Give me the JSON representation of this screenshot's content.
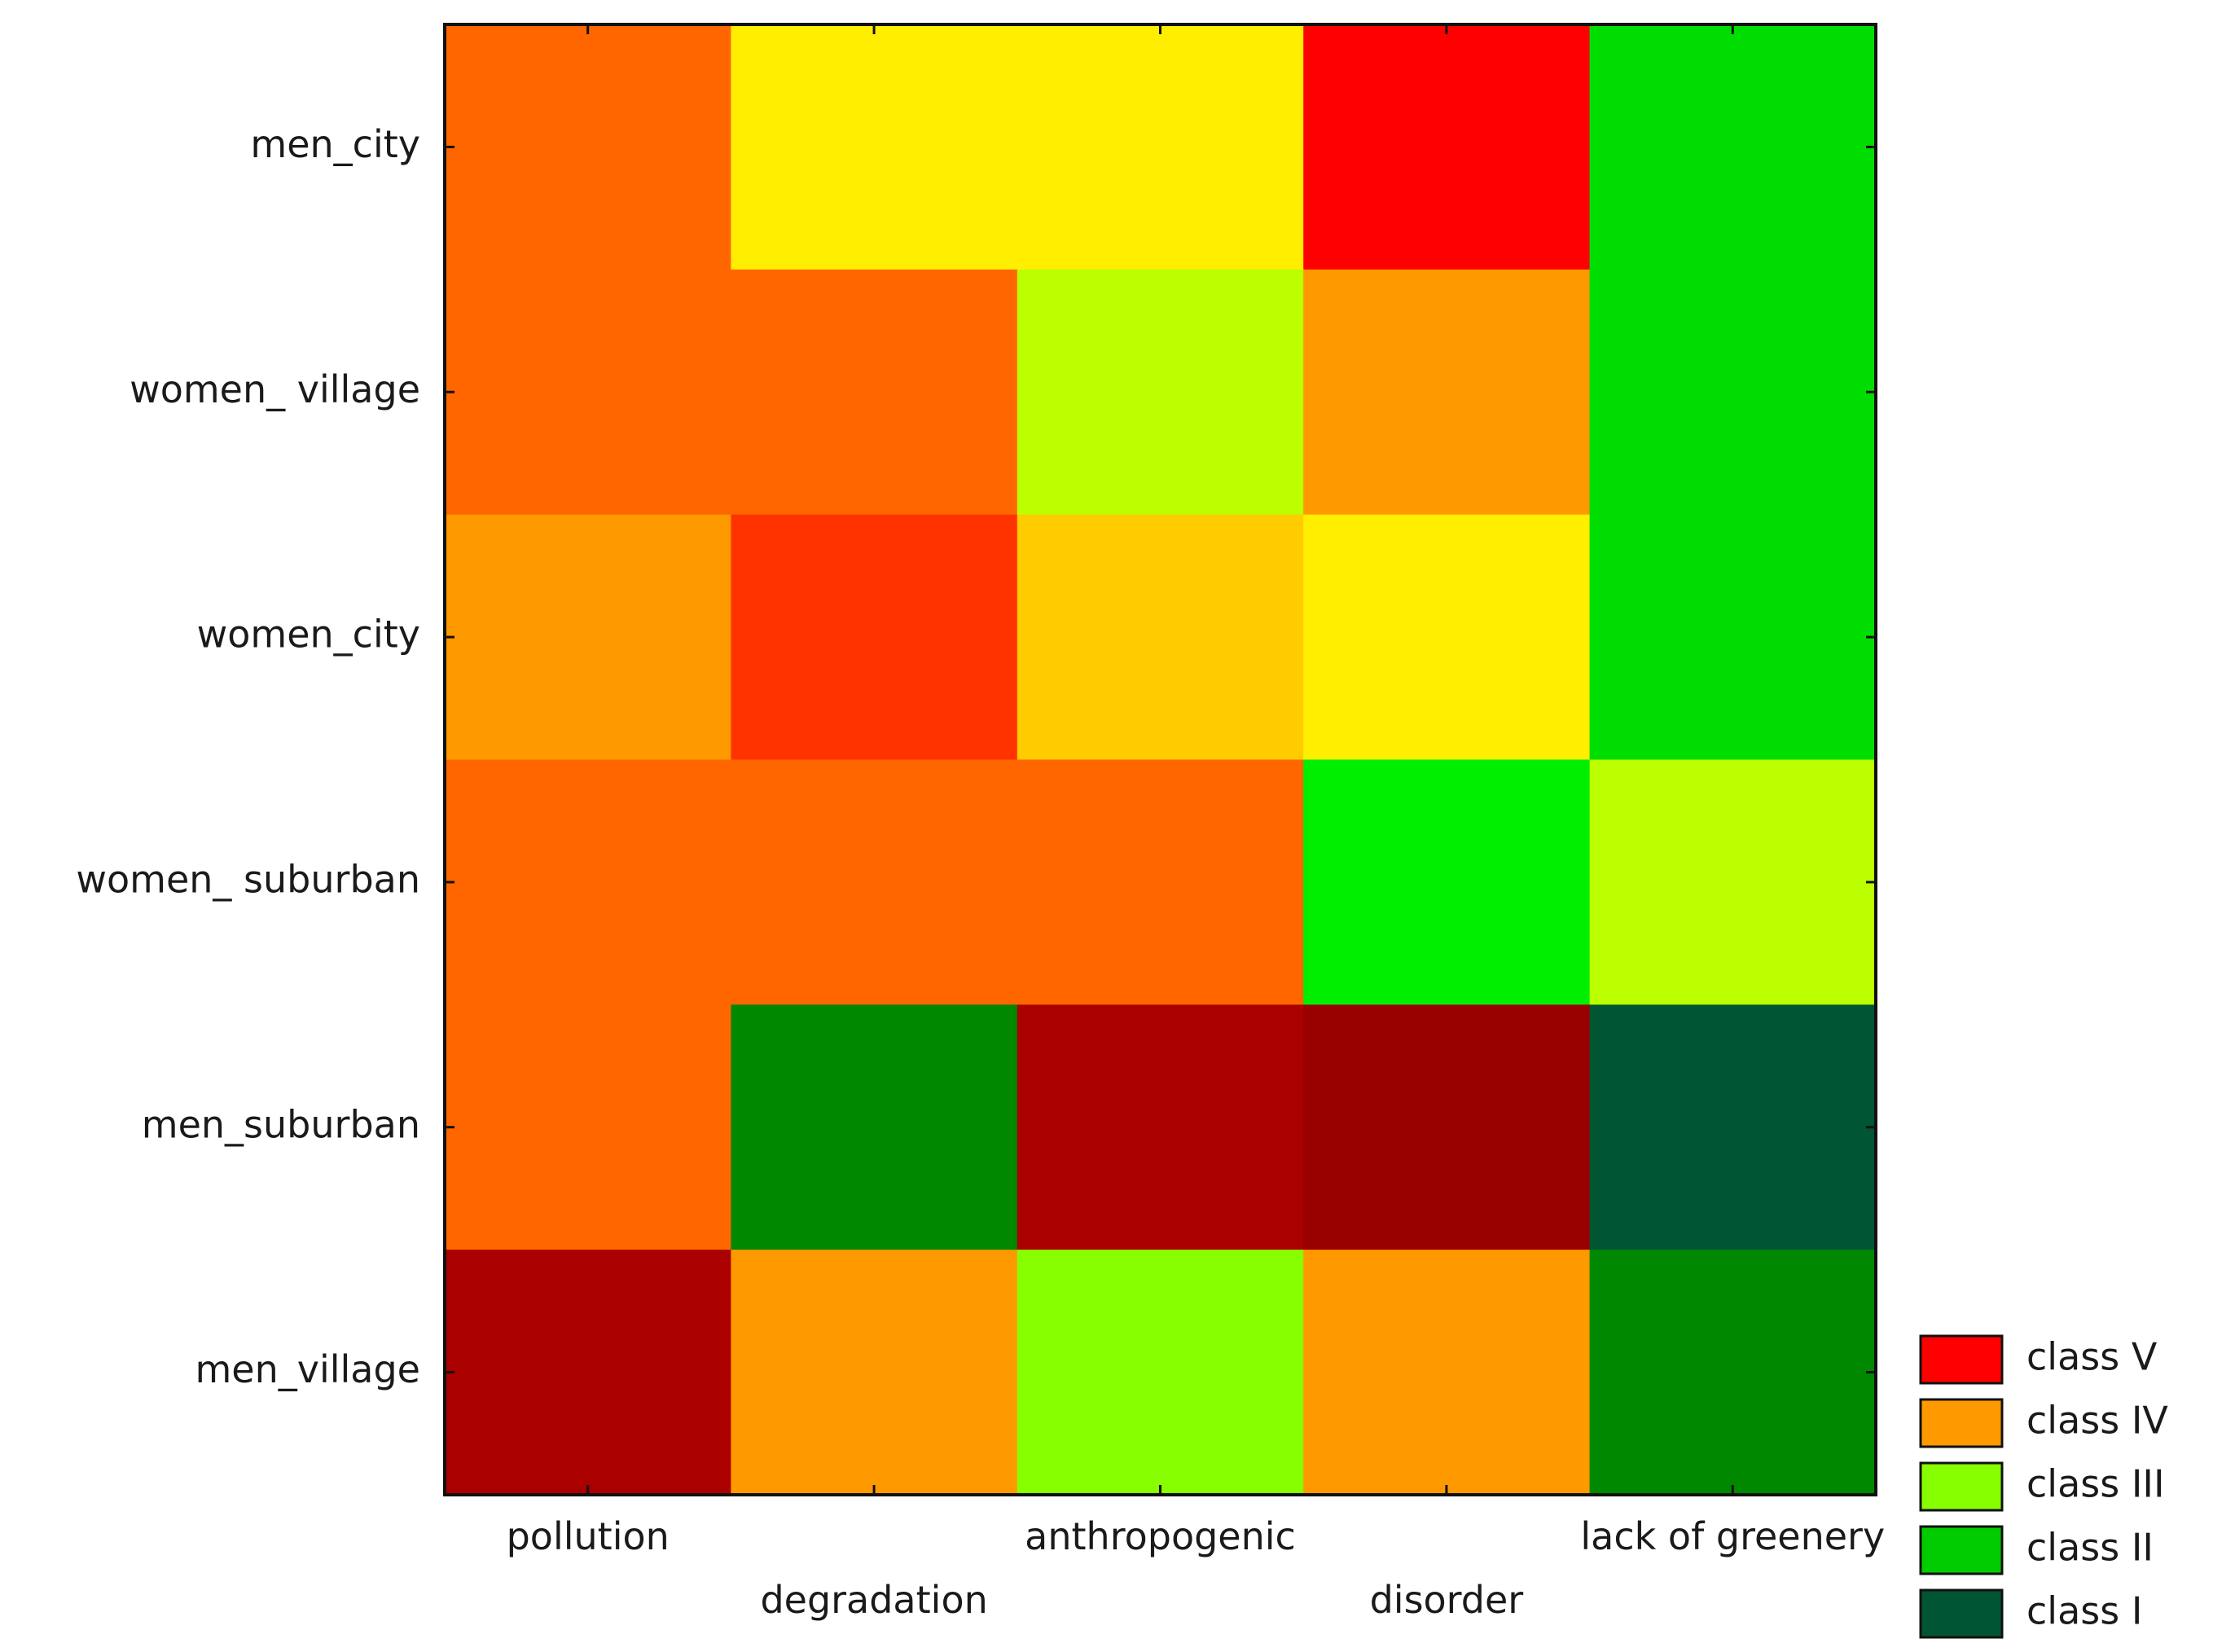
{
  "chart_data": {
    "type": "heatmap",
    "title": "",
    "xlabel": "",
    "ylabel": "",
    "columns": [
      "pollution",
      "degradation",
      "anthropogenic",
      "disorder",
      "lack of greenery"
    ],
    "rows": [
      "men_city",
      "women_ village",
      "women_city",
      "women_ suburban",
      "men_suburban",
      "men_village"
    ],
    "cell_colors": [
      [
        "#ff6600",
        "#ffee00",
        "#ffee00",
        "#ff0000",
        "#00dd00"
      ],
      [
        "#ff6600",
        "#ff6600",
        "#bbff00",
        "#ff9900",
        "#00dd00"
      ],
      [
        "#ff9900",
        "#ff3300",
        "#ffcc00",
        "#ffee00",
        "#00dd00"
      ],
      [
        "#ff6600",
        "#ff6600",
        "#ff6600",
        "#00ee00",
        "#bbff00"
      ],
      [
        "#ff6600",
        "#008800",
        "#aa0000",
        "#990000",
        "#005533"
      ],
      [
        "#aa0000",
        "#ff9900",
        "#88ff00",
        "#ff9900",
        "#008800"
      ]
    ],
    "legend": {
      "placement": "bottom-right",
      "items": [
        {
          "label": "class  V",
          "color": "#ff0000"
        },
        {
          "label": "class  IV",
          "color": "#ff9900"
        },
        {
          "label": "class  III",
          "color": "#88ff00"
        },
        {
          "label": "class  II",
          "color": "#00cc00"
        },
        {
          "label": "class  I",
          "color": "#005533"
        }
      ]
    }
  }
}
